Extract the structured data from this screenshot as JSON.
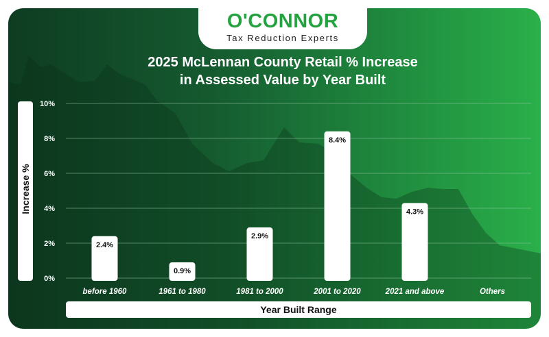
{
  "brand": {
    "name": "O'CONNOR",
    "tagline": "Tax Reduction Experts"
  },
  "chart_data": {
    "type": "bar",
    "title_line1": "2025 McLennan County Retail % Increase",
    "title_line2": "in Assessed Value by Year Built",
    "xlabel": "Year Built Range",
    "ylabel": "Increase %",
    "categories": [
      "before 1960",
      "1961 to 1980",
      "1981 to 2000",
      "2001 to 2020",
      "2021 and above",
      "Others"
    ],
    "values": [
      2.4,
      0.9,
      2.9,
      8.4,
      4.3,
      null
    ],
    "data_labels": [
      "2.4%",
      "0.9%",
      "2.9%",
      "8.4%",
      "4.3%",
      ""
    ],
    "yticks": [
      0,
      2,
      4,
      6,
      8,
      10
    ],
    "ytick_labels": [
      "0%",
      "2%",
      "4%",
      "6%",
      "8%",
      "10%"
    ],
    "ylim": [
      0,
      10
    ],
    "grid": true,
    "legend": "none",
    "colors": {
      "bar": "#ffffff",
      "text": "#ffffff",
      "label": "#111111",
      "grid": "#8fc39f",
      "background_start": "#0e3c22",
      "background_end": "#2ab04a",
      "brand_green": "#23a33f"
    }
  }
}
